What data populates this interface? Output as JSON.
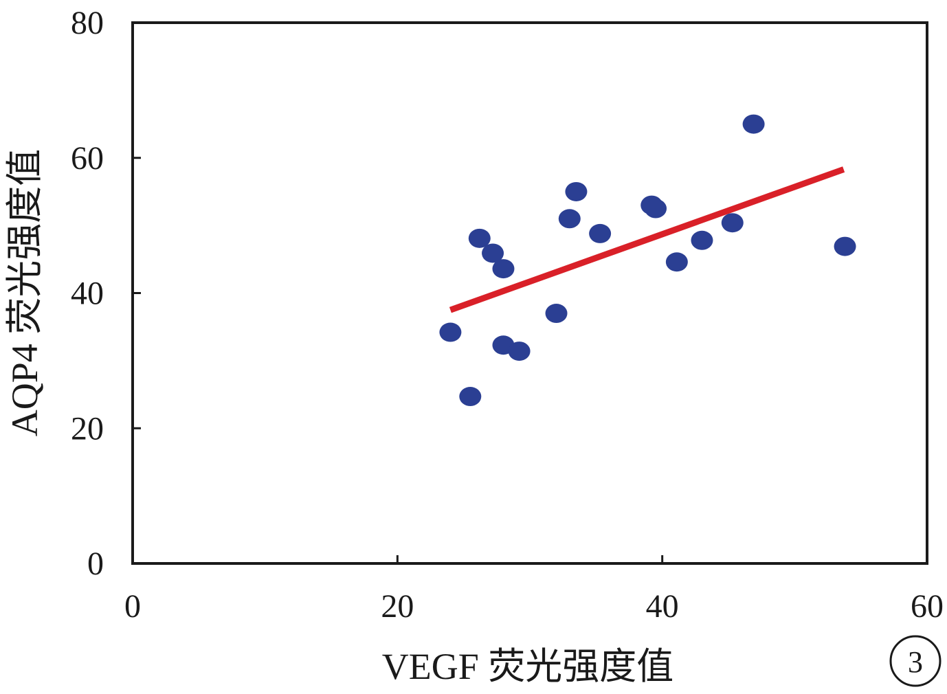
{
  "chart_data": {
    "type": "scatter",
    "xlabel": "VEGF 荧光强度值",
    "ylabel": "AQP4 荧光强度值",
    "xlim": [
      0,
      60
    ],
    "ylim": [
      0,
      80
    ],
    "x_ticks": [
      "0",
      "20",
      "40",
      "60"
    ],
    "y_ticks": [
      "0",
      "20",
      "40",
      "60",
      "80"
    ],
    "grid": false,
    "panel_label": "3",
    "points": [
      {
        "x": 24.0,
        "y": 34.2
      },
      {
        "x": 25.5,
        "y": 24.7
      },
      {
        "x": 26.2,
        "y": 48.1
      },
      {
        "x": 27.2,
        "y": 45.9
      },
      {
        "x": 28.0,
        "y": 43.6
      },
      {
        "x": 28.0,
        "y": 32.3
      },
      {
        "x": 29.2,
        "y": 31.4
      },
      {
        "x": 32.0,
        "y": 37.0
      },
      {
        "x": 33.0,
        "y": 51.0
      },
      {
        "x": 33.5,
        "y": 55.0
      },
      {
        "x": 35.3,
        "y": 48.8
      },
      {
        "x": 39.2,
        "y": 53.0
      },
      {
        "x": 39.5,
        "y": 52.5
      },
      {
        "x": 41.1,
        "y": 44.6
      },
      {
        "x": 43.0,
        "y": 47.8
      },
      {
        "x": 45.3,
        "y": 50.4
      },
      {
        "x": 46.9,
        "y": 65.0
      },
      {
        "x": 53.8,
        "y": 46.9
      }
    ],
    "fit_line": {
      "x": [
        24.0,
        53.7
      ],
      "y": [
        37.5,
        58.3
      ]
    },
    "colors": {
      "points": "#2b3f93",
      "fit_line": "#d92028",
      "axis": "#1a1a1a"
    }
  }
}
